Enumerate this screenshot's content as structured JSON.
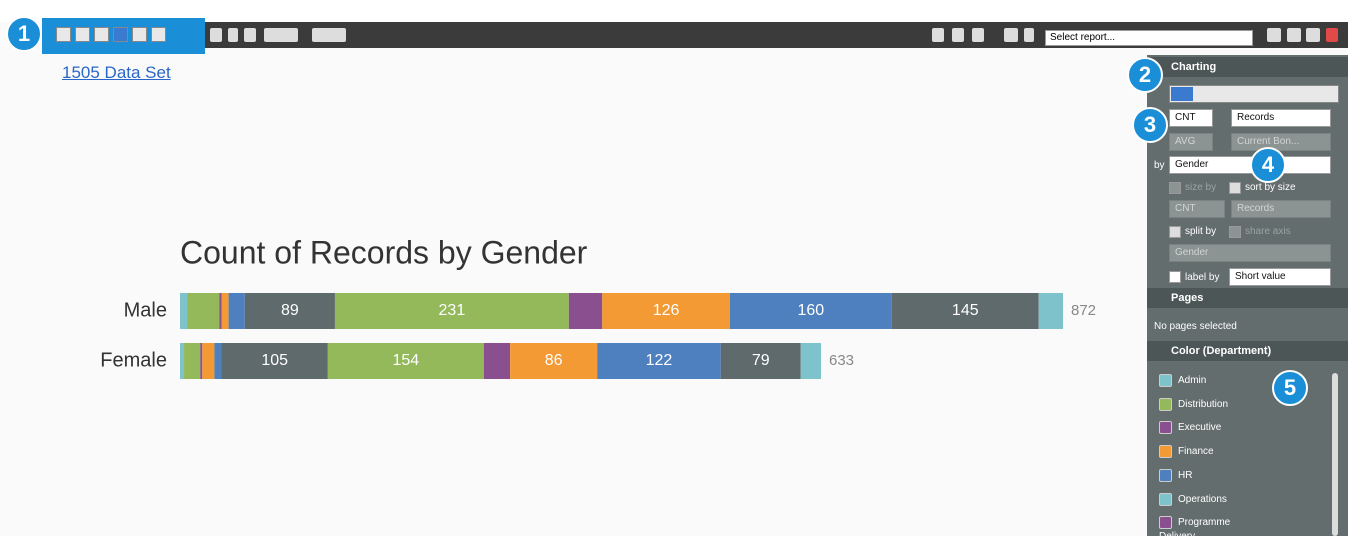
{
  "toolbar": {
    "report_select": "Select report..."
  },
  "dataset_link": "1505 Data Set",
  "callouts": [
    "1",
    "2",
    "3",
    "4",
    "5"
  ],
  "chart_data": {
    "type": "bar",
    "orientation": "horizontal",
    "stacked": true,
    "title": "Count of Records by Gender",
    "categories": [
      "Male",
      "Female"
    ],
    "series": [
      {
        "color": "#7ec3cc",
        "values": [
          7,
          4
        ]
      },
      {
        "color": "#93b95b",
        "values": [
          32,
          16
        ]
      },
      {
        "color": "#8a4f8f",
        "values": [
          2,
          2
        ]
      },
      {
        "color": "#f39a35",
        "values": [
          7,
          12
        ]
      },
      {
        "color": "#4e80c0",
        "values": [
          16,
          7
        ]
      },
      {
        "color": "#5e6a6b",
        "values": [
          89,
          105
        ]
      },
      {
        "color": "#93b95b",
        "values": [
          231,
          154
        ]
      },
      {
        "color": "#8a4f8f",
        "values": [
          33,
          26
        ]
      },
      {
        "color": "#f39a35",
        "values": [
          126,
          86
        ]
      },
      {
        "color": "#4e80c0",
        "values": [
          160,
          122
        ]
      },
      {
        "color": "#5e6a6b",
        "values": [
          145,
          79
        ]
      },
      {
        "color": "#7ec3cc",
        "values": [
          24,
          20
        ]
      }
    ],
    "totals": [
      872,
      633
    ],
    "xlim": [
      0,
      872
    ]
  },
  "panel": {
    "charting": {
      "title": "Charting",
      "agg1": "CNT",
      "field1": "Records",
      "agg2": "AVG",
      "field2": "Current Bon...",
      "by": "by",
      "by_field": "Gender",
      "size_by": "size by",
      "sort_by_size": "sort by size",
      "size_agg": "CNT",
      "size_field": "Records",
      "split_by": "split by",
      "share_axis": "share axis",
      "split_field": "Gender",
      "label_by": "label by",
      "label_value": "Short value"
    },
    "pages": {
      "title": "Pages",
      "empty": "No pages selected"
    },
    "color": {
      "title": "Color (Department)",
      "items": [
        {
          "name": "Admin",
          "color": "#7ec3cc"
        },
        {
          "name": "Distribution",
          "color": "#93b95b"
        },
        {
          "name": "Executive",
          "color": "#8a4f8f"
        },
        {
          "name": "Finance",
          "color": "#f39a35"
        },
        {
          "name": "HR",
          "color": "#4e80c0"
        },
        {
          "name": "Operations",
          "color": "#7ec3cc"
        },
        {
          "name": "Programme Delivery",
          "color": "#8a4f8f"
        }
      ]
    }
  }
}
